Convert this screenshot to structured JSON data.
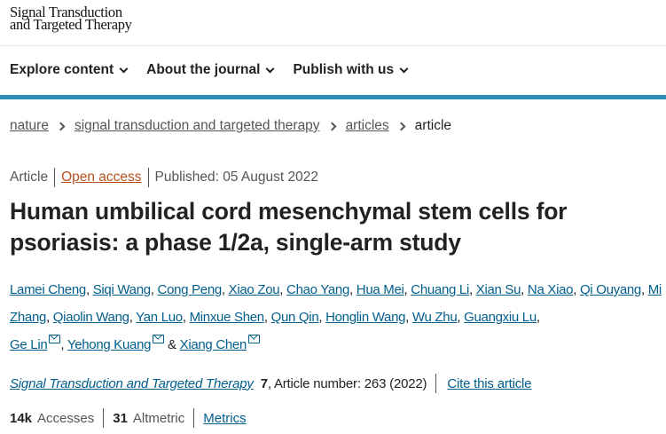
{
  "header": {
    "logo_line1": "Signal Transduction",
    "logo_line2": "and Targeted Therapy"
  },
  "nav": [
    {
      "label": "Explore content"
    },
    {
      "label": "About the journal"
    },
    {
      "label": "Publish with us"
    }
  ],
  "breadcrumb": [
    {
      "label": "nature"
    },
    {
      "label": "signal transduction and targeted therapy"
    },
    {
      "label": "articles"
    },
    {
      "label": "article"
    }
  ],
  "meta": {
    "type": "Article",
    "access": "Open access",
    "published": "Published: 05 August 2022"
  },
  "title": "Human umbilical cord mesenchymal stem cells for psoriasis: a phase 1/2a, single-arm study",
  "authors": [
    "Lamei Cheng",
    "Siqi Wang",
    "Cong Peng",
    "Xiao Zou",
    "Chao Yang",
    "Hua Mei",
    "Chuang Li",
    "Xian Su",
    "Na Xiao",
    "Qi Ouyang",
    "Mi Zhang",
    "Qiaolin Wang",
    "Yan Luo",
    "Minxue Shen",
    "Qun Qin",
    "Honglin Wang",
    "Wu Zhu",
    "Guangxiu Lu",
    "Ge Lin",
    "Yehong Kuang",
    "Xiang Chen"
  ],
  "corresponding_authors": [
    "Ge Lin",
    "Yehong Kuang",
    "Xiang Chen"
  ],
  "citation": {
    "journal": "Signal Transduction and Targeted Therapy",
    "volume": "7",
    "rest": ", Article number: 263 (2022)",
    "cite_link": "Cite this article"
  },
  "stats": {
    "accesses_value": "14k",
    "accesses_label": "Accesses",
    "altmetric_value": "31",
    "altmetric_label": "Altmetric",
    "metrics_link": "Metrics"
  },
  "colors": {
    "link": "#025e8d",
    "accent_bar": "#2b8db3",
    "open_access": "#b7501f"
  }
}
